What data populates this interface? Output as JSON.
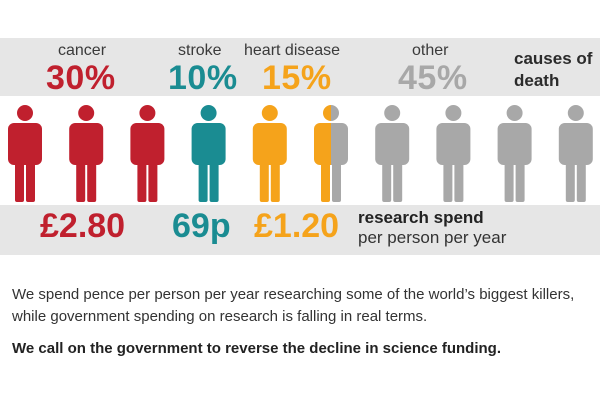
{
  "categories": [
    {
      "label": "cancer",
      "percent": "30%",
      "spend": "£2.80",
      "color": "#c0202e"
    },
    {
      "label": "stroke",
      "percent": "10%",
      "spend": "69p",
      "color": "#1a8c92"
    },
    {
      "label": "heart disease",
      "percent": "15%",
      "spend": "£1.20",
      "color": "#f5a31b"
    },
    {
      "label": "other",
      "percent": "45%",
      "color": "#a8a8a8"
    }
  ],
  "causes_label": "causes of death",
  "research_spend": {
    "heading": "research spend",
    "subheading": "per person per year"
  },
  "figures": {
    "count": 10,
    "colors": [
      "#c0202e",
      "#c0202e",
      "#c0202e",
      "#1a8c92",
      "#f5a31b",
      "split",
      "#a8a8a8",
      "#a8a8a8",
      "#a8a8a8",
      "#a8a8a8"
    ]
  },
  "text": {
    "paragraph": "We spend pence per person per year researching some of the world’s biggest killers, while government spending on research is falling in real terms.",
    "call_to_action": "We call on the government to reverse the decline in science funding."
  }
}
